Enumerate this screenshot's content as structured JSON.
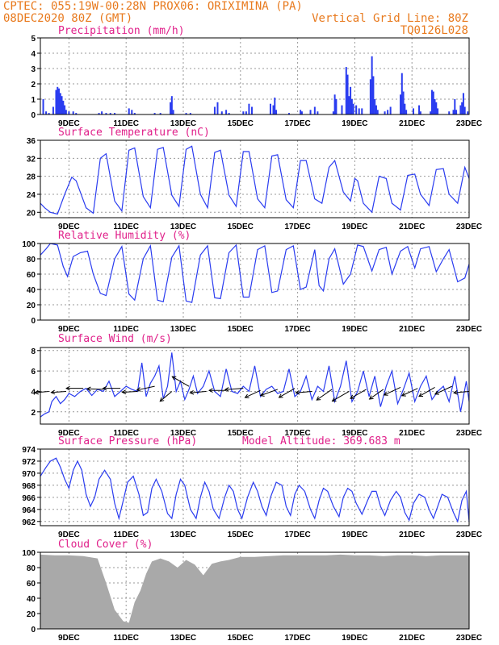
{
  "header": {
    "line1_left": "CPTEC:   055:19W-00:28N   PROX06: ORIXIMINA (PA)",
    "line2_left": "08DEC2020 80Z (GMT)",
    "line2_right": "Vertical Grid Line: 80Z",
    "line3_right": "TQ0126L028"
  },
  "colors": {
    "header": "#e87a1e",
    "title": "#e0208a",
    "series": "#2a3cf0",
    "cloud": "#a9a9a9"
  },
  "chart_data": [
    {
      "type": "bar",
      "title": "Precipitation (mm/h)",
      "x_tick_labels": [
        "9DEC",
        "11DEC",
        "13DEC",
        "15DEC",
        "17DEC",
        "19DEC",
        "21DEC",
        "23DEC"
      ],
      "ylim": [
        0,
        5
      ],
      "yticks": [
        0,
        1,
        2,
        3,
        4,
        5
      ],
      "x_range_days": [
        8.0,
        23.0
      ],
      "x_days": [
        8.1,
        8.2,
        8.3,
        8.45,
        8.55,
        8.6,
        8.65,
        8.7,
        8.75,
        8.8,
        8.85,
        8.9,
        9.0,
        9.15,
        9.25,
        10.05,
        10.15,
        10.3,
        10.45,
        10.6,
        11.1,
        11.2,
        11.3,
        12.0,
        12.2,
        12.55,
        12.6,
        12.65,
        13.1,
        13.25,
        14.1,
        14.2,
        14.35,
        14.5,
        14.6,
        15.1,
        15.2,
        15.3,
        15.4,
        16.05,
        16.15,
        16.2,
        16.25,
        16.7,
        17.1,
        17.15,
        17.45,
        17.6,
        17.7,
        18.25,
        18.3,
        18.35,
        18.55,
        18.7,
        18.75,
        18.8,
        18.85,
        18.9,
        18.95,
        19.05,
        19.15,
        19.25,
        19.55,
        19.6,
        19.65,
        19.7,
        19.75,
        19.8,
        20.05,
        20.15,
        20.25,
        20.6,
        20.65,
        20.7,
        20.75,
        20.8,
        21.05,
        21.25,
        21.3,
        21.65,
        21.7,
        21.75,
        21.8,
        21.85,
        21.9,
        22.3,
        22.45,
        22.5,
        22.55,
        22.7,
        22.75,
        22.8,
        22.85,
        22.95
      ],
      "values": [
        1.0,
        0.2,
        0.1,
        0.5,
        1.6,
        1.8,
        1.7,
        1.4,
        1.2,
        0.9,
        0.6,
        0.3,
        0.2,
        0.2,
        0.1,
        0.1,
        0.2,
        0.1,
        0.1,
        0.1,
        0.4,
        0.3,
        0.1,
        0.1,
        0.1,
        0.8,
        1.2,
        0.3,
        0.1,
        0.1,
        0.5,
        0.8,
        0.2,
        0.3,
        0.1,
        0.2,
        0.2,
        0.7,
        0.5,
        0.7,
        0.6,
        1.1,
        0.3,
        0.1,
        0.3,
        0.2,
        0.3,
        0.5,
        0.2,
        0.2,
        1.3,
        1.0,
        0.6,
        3.1,
        2.6,
        1.2,
        1.8,
        1.0,
        0.7,
        0.6,
        0.4,
        0.4,
        2.3,
        3.8,
        2.5,
        1.0,
        0.6,
        0.3,
        0.2,
        0.3,
        0.5,
        1.3,
        2.7,
        1.5,
        0.7,
        0.3,
        0.4,
        0.6,
        0.2,
        0.2,
        1.6,
        1.5,
        1.0,
        0.8,
        0.4,
        0.2,
        0.3,
        1.0,
        0.3,
        0.6,
        0.8,
        1.4,
        0.5,
        0.2
      ]
    },
    {
      "type": "line",
      "title": "Surface Temperature (nC)",
      "x_tick_labels": [
        "9DEC",
        "11DEC",
        "13DEC",
        "15DEC",
        "17DEC",
        "19DEC",
        "21DEC",
        "23DEC"
      ],
      "ylim": [
        18.8,
        36
      ],
      "yticks": [
        20,
        24,
        28,
        32,
        36
      ],
      "x_range_days": [
        8.0,
        23.0
      ],
      "x_days": [
        8.0,
        8.15,
        8.35,
        8.6,
        8.85,
        9.1,
        9.25,
        9.6,
        9.85,
        10.1,
        10.3,
        10.6,
        10.85,
        11.1,
        11.3,
        11.6,
        11.85,
        12.1,
        12.3,
        12.6,
        12.85,
        13.1,
        13.3,
        13.6,
        13.85,
        14.1,
        14.3,
        14.6,
        14.85,
        15.1,
        15.3,
        15.6,
        15.85,
        16.1,
        16.3,
        16.6,
        16.85,
        17.1,
        17.3,
        17.6,
        17.85,
        18.1,
        18.3,
        18.6,
        18.85,
        19.0,
        19.1,
        19.3,
        19.6,
        19.85,
        20.1,
        20.3,
        20.6,
        20.85,
        21.1,
        21.3,
        21.6,
        21.85,
        22.1,
        22.3,
        22.6,
        22.85,
        23.0
      ],
      "values": [
        22.0,
        21.0,
        20.0,
        19.6,
        24.0,
        27.8,
        27.0,
        21.0,
        19.8,
        32.0,
        33.0,
        22.5,
        20.3,
        33.8,
        34.3,
        23.5,
        21.0,
        34.0,
        34.4,
        23.8,
        21.3,
        34.0,
        34.7,
        24.0,
        21.0,
        33.3,
        33.8,
        23.8,
        21.3,
        33.5,
        33.5,
        23.0,
        21.0,
        32.5,
        32.8,
        22.8,
        21.0,
        31.5,
        31.5,
        23.0,
        22.0,
        30.0,
        31.5,
        24.5,
        22.5,
        27.5,
        27.0,
        22.0,
        20.0,
        28.0,
        27.5,
        22.0,
        20.5,
        28.2,
        28.5,
        24.0,
        21.5,
        29.5,
        29.7,
        24.0,
        22.0,
        30.0,
        27.5
      ]
    },
    {
      "type": "line",
      "title": "Relative Humidity (%)",
      "x_tick_labels": [
        "9DEC",
        "11DEC",
        "13DEC",
        "15DEC",
        "17DEC",
        "19DEC",
        "21DEC",
        "23DEC"
      ],
      "ylim": [
        0,
        100
      ],
      "yticks": [
        0,
        20,
        40,
        60,
        80,
        100
      ],
      "x_range_days": [
        8.0,
        23.0
      ],
      "x_days": [
        8.0,
        8.2,
        8.35,
        8.6,
        8.8,
        8.95,
        9.15,
        9.4,
        9.65,
        9.85,
        10.1,
        10.3,
        10.6,
        10.85,
        11.1,
        11.3,
        11.6,
        11.85,
        12.1,
        12.3,
        12.6,
        12.85,
        13.1,
        13.3,
        13.6,
        13.85,
        14.1,
        14.3,
        14.6,
        14.85,
        15.1,
        15.3,
        15.6,
        15.85,
        16.1,
        16.3,
        16.6,
        16.85,
        17.1,
        17.3,
        17.6,
        17.75,
        17.9,
        18.1,
        18.3,
        18.6,
        18.85,
        19.1,
        19.3,
        19.6,
        19.85,
        20.1,
        20.3,
        20.6,
        20.85,
        21.1,
        21.3,
        21.6,
        21.85,
        22.1,
        22.3,
        22.6,
        22.85,
        23.0
      ],
      "values": [
        85,
        93,
        100,
        98,
        70,
        57,
        83,
        88,
        90,
        60,
        35,
        32,
        80,
        96,
        34,
        26,
        80,
        97,
        26,
        24,
        82,
        97,
        25,
        23,
        85,
        97,
        29,
        28,
        88,
        98,
        30,
        30,
        92,
        97,
        36,
        38,
        92,
        97,
        40,
        43,
        92,
        45,
        38,
        80,
        93,
        47,
        60,
        98,
        96,
        64,
        92,
        95,
        60,
        90,
        96,
        68,
        93,
        96,
        63,
        80,
        92,
        50,
        55,
        73
      ]
    },
    {
      "type": "line",
      "title": "Surface Wind (m/s)",
      "x_tick_labels": [
        "9DEC",
        "11DEC",
        "13DEC",
        "15DEC",
        "17DEC",
        "19DEC",
        "21DEC",
        "23DEC"
      ],
      "ylim": [
        0.8,
        8.3
      ],
      "yticks": [
        2,
        4,
        6,
        8
      ],
      "x_range_days": [
        8.0,
        23.0
      ],
      "x_days": [
        8.0,
        8.15,
        8.3,
        8.4,
        8.55,
        8.7,
        8.85,
        9.0,
        9.2,
        9.4,
        9.6,
        9.8,
        10.0,
        10.2,
        10.4,
        10.6,
        10.8,
        11.0,
        11.2,
        11.4,
        11.55,
        11.7,
        11.85,
        12.0,
        12.15,
        12.3,
        12.45,
        12.6,
        12.75,
        12.9,
        13.05,
        13.2,
        13.35,
        13.5,
        13.7,
        13.9,
        14.1,
        14.3,
        14.5,
        14.7,
        14.9,
        15.1,
        15.3,
        15.5,
        15.7,
        15.9,
        16.1,
        16.3,
        16.5,
        16.7,
        16.9,
        17.1,
        17.3,
        17.5,
        17.7,
        17.9,
        18.1,
        18.3,
        18.5,
        18.7,
        18.9,
        19.1,
        19.3,
        19.5,
        19.7,
        19.9,
        20.1,
        20.3,
        20.5,
        20.7,
        20.9,
        21.1,
        21.3,
        21.5,
        21.7,
        21.9,
        22.1,
        22.3,
        22.5,
        22.7,
        22.9,
        23.0
      ],
      "values": [
        1.5,
        1.8,
        2.0,
        3.0,
        3.5,
        2.8,
        3.2,
        3.8,
        3.5,
        4.0,
        4.3,
        3.6,
        4.2,
        4.0,
        5.0,
        3.5,
        4.0,
        4.5,
        4.2,
        4.0,
        6.8,
        3.5,
        4.8,
        5.5,
        6.5,
        3.3,
        4.5,
        7.8,
        4.0,
        5.0,
        3.2,
        4.2,
        5.5,
        3.8,
        4.5,
        6.0,
        4.0,
        3.5,
        6.2,
        4.0,
        3.8,
        4.5,
        4.0,
        6.5,
        3.5,
        4.2,
        4.5,
        3.8,
        4.0,
        6.2,
        3.5,
        4.0,
        5.5,
        3.2,
        4.5,
        4.0,
        6.5,
        3.0,
        4.5,
        7.0,
        3.0,
        4.0,
        6.0,
        3.5,
        5.5,
        2.5,
        4.5,
        6.0,
        2.8,
        4.2,
        5.8,
        3.0,
        4.5,
        5.5,
        3.2,
        4.0,
        4.5,
        3.0,
        5.5,
        2.0,
        5.0,
        3.0
      ],
      "arrows_x_days": [
        8.3,
        8.9,
        9.5,
        10.2,
        10.8,
        11.4,
        12.0,
        12.6,
        13.2,
        13.8,
        14.5,
        15.1,
        15.7,
        16.3,
        16.9,
        17.5,
        18.2,
        18.8,
        19.4,
        20.0,
        20.6,
        21.2,
        21.8,
        22.4,
        23.0
      ],
      "arrows_y": [
        4.0,
        4.0,
        4.3,
        4.2,
        4.3,
        4.0,
        4.5,
        4.0,
        4.5,
        4.0,
        4.1,
        4.3,
        4.1,
        4.2,
        4.3,
        4.0,
        4.2,
        4.0,
        4.2,
        4.2,
        4.4,
        4.3,
        4.4,
        4.5,
        4.0
      ],
      "arrows_speed": [
        3.5,
        3.7,
        4.2,
        4.0,
        4.3,
        3.8,
        4.5,
        3.8,
        4.8,
        4.0,
        4.2,
        4.5,
        4.2,
        4.5,
        4.5,
        4.0,
        4.6,
        4.8,
        4.5,
        4.2,
        4.5,
        4.3,
        4.5,
        4.6,
        3.8
      ],
      "arrows_dir_deg": [
        -5,
        -4,
        0,
        2,
        0,
        -3,
        -12,
        -40,
        30,
        -5,
        0,
        -4,
        -25,
        -20,
        -30,
        -5,
        -35,
        -30,
        -30,
        -35,
        -25,
        -25,
        -30,
        -25,
        -5
      ]
    },
    {
      "type": "line",
      "title": "Surface Pressure (hPa)",
      "annotation": "Model Altitude: 369.683 m",
      "x_tick_labels": [
        "9DEC",
        "11DEC",
        "13DEC",
        "15DEC",
        "17DEC",
        "19DEC",
        "21DEC",
        "23DEC"
      ],
      "ylim": [
        961.3,
        974
      ],
      "yticks": [
        962,
        964,
        966,
        968,
        970,
        972,
        974
      ],
      "x_range_days": [
        8.0,
        23.0
      ],
      "x_days": [
        8.0,
        8.2,
        8.35,
        8.55,
        8.7,
        8.85,
        9.0,
        9.15,
        9.3,
        9.45,
        9.6,
        9.75,
        9.9,
        10.05,
        10.25,
        10.45,
        10.6,
        10.75,
        10.9,
        11.05,
        11.25,
        11.45,
        11.6,
        11.75,
        11.9,
        12.05,
        12.25,
        12.45,
        12.6,
        12.75,
        12.9,
        13.05,
        13.25,
        13.45,
        13.6,
        13.75,
        13.9,
        14.05,
        14.25,
        14.45,
        14.6,
        14.75,
        14.9,
        15.05,
        15.25,
        15.45,
        15.6,
        15.75,
        15.9,
        16.05,
        16.25,
        16.45,
        16.6,
        16.75,
        16.9,
        17.05,
        17.25,
        17.45,
        17.6,
        17.75,
        17.9,
        18.05,
        18.25,
        18.45,
        18.6,
        18.75,
        18.9,
        19.05,
        19.25,
        19.45,
        19.6,
        19.75,
        19.9,
        20.05,
        20.25,
        20.45,
        20.6,
        20.75,
        20.9,
        21.05,
        21.25,
        21.45,
        21.6,
        21.75,
        21.9,
        22.05,
        22.25,
        22.45,
        22.6,
        22.75,
        22.9,
        23.0
      ],
      "values": [
        969.5,
        971.0,
        972.0,
        972.5,
        971.0,
        969.0,
        967.5,
        970.5,
        972.0,
        970.5,
        966.5,
        964.5,
        966.0,
        969.0,
        970.5,
        969.0,
        965.0,
        962.5,
        965.5,
        968.5,
        969.5,
        966.5,
        963.0,
        963.5,
        967.5,
        969.0,
        967.0,
        963.3,
        962.5,
        966.5,
        969.0,
        968.0,
        964.0,
        962.5,
        966.0,
        968.5,
        967.0,
        964.0,
        962.5,
        966.0,
        968.0,
        967.0,
        964.0,
        962.5,
        966.0,
        968.5,
        967.0,
        964.5,
        963.0,
        966.0,
        968.5,
        968.0,
        964.5,
        963.0,
        966.5,
        968.0,
        967.0,
        964.0,
        962.5,
        965.5,
        967.5,
        967.0,
        964.5,
        962.8,
        966.0,
        967.5,
        967.0,
        965.0,
        963.2,
        965.5,
        967.0,
        967.0,
        964.5,
        963.0,
        965.5,
        967.0,
        966.0,
        963.5,
        962.2,
        965.0,
        966.5,
        966.0,
        964.0,
        962.5,
        964.5,
        966.5,
        966.0,
        963.5,
        962.0,
        965.5,
        967.0,
        962.0
      ]
    },
    {
      "type": "bar",
      "title": "Cloud Cover (%)",
      "x_tick_labels": [
        "9DEC",
        "11DEC",
        "13DEC",
        "15DEC",
        "17DEC",
        "19DEC",
        "21DEC",
        "23DEC"
      ],
      "ylim": [
        0,
        100
      ],
      "yticks": [
        0,
        20,
        40,
        60,
        80,
        100
      ],
      "x_range_days": [
        8.0,
        23.0
      ],
      "x_days": [
        8.0,
        8.5,
        9.0,
        9.5,
        10.0,
        10.3,
        10.6,
        10.9,
        11.1,
        11.3,
        11.5,
        11.7,
        11.9,
        12.2,
        12.5,
        12.8,
        13.1,
        13.4,
        13.7,
        14.0,
        14.3,
        14.6,
        15.0,
        15.5,
        16.0,
        16.5,
        17.0,
        17.5,
        18.0,
        18.5,
        19.0,
        19.5,
        20.0,
        20.5,
        21.0,
        21.5,
        22.0,
        22.5,
        23.0
      ],
      "values": [
        97,
        96,
        96,
        95,
        92,
        60,
        25,
        10,
        8,
        35,
        50,
        72,
        88,
        92,
        88,
        80,
        90,
        84,
        70,
        85,
        88,
        90,
        94,
        94,
        95,
        96,
        96,
        96,
        96,
        97,
        96,
        96,
        95,
        96,
        96,
        95,
        96,
        96,
        96
      ]
    }
  ]
}
